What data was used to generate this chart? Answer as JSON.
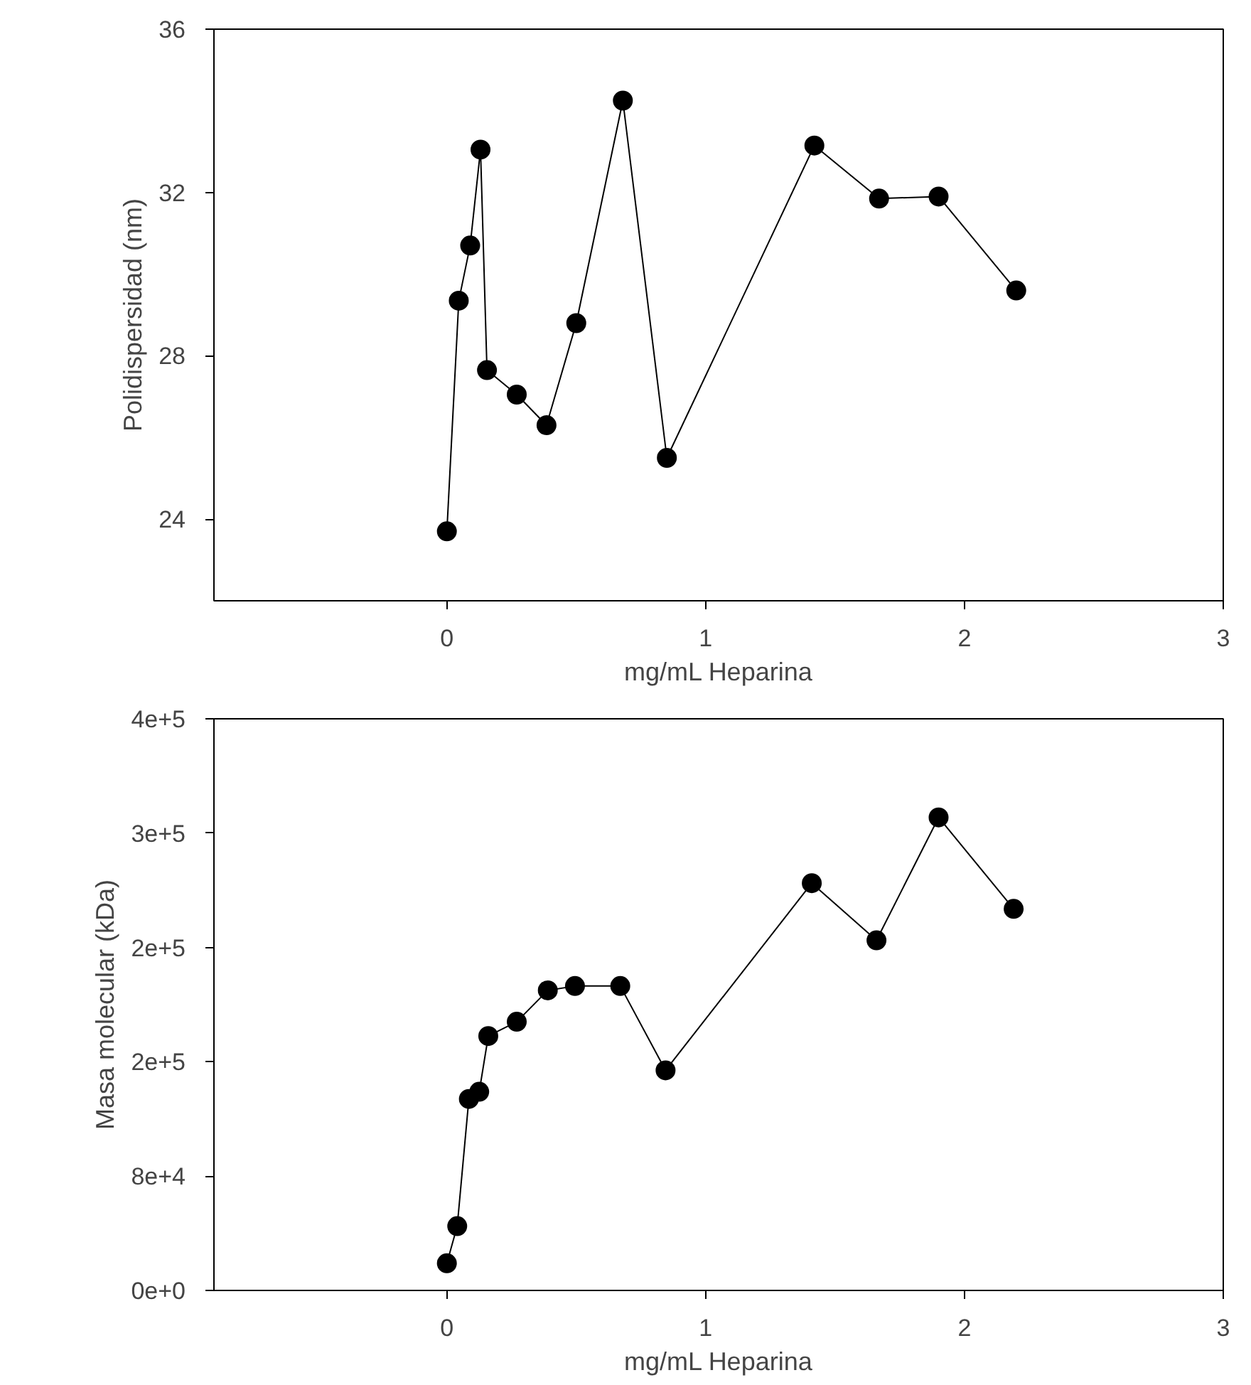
{
  "chart_data": [
    {
      "type": "line",
      "xlabel": "mg/mL Heparina",
      "ylabel": "Polidispersidad (nm)",
      "xlim": [
        -0.9,
        3
      ],
      "ylim": [
        22,
        36
      ],
      "xticks": [
        0,
        1,
        2,
        3
      ],
      "yticks": [
        24,
        28,
        32,
        36
      ],
      "grid": false,
      "marker": "circle",
      "line_style": "solid",
      "x": [
        0,
        0.046,
        0.09,
        0.13,
        0.155,
        0.27,
        0.385,
        0.5,
        0.68,
        0.85,
        1.42,
        1.67,
        1.9,
        2.2
      ],
      "series": [
        {
          "color": "#000000",
          "values": [
            23.7,
            29.35,
            30.7,
            33.05,
            27.65,
            27.05,
            26.3,
            28.8,
            34.25,
            25.5,
            33.15,
            31.85,
            31.9,
            29.6
          ]
        }
      ]
    },
    {
      "type": "line",
      "xlabel": "mg/mL Heparina",
      "ylabel": "Masa molecular (kDa)",
      "xlim": [
        -0.9,
        3
      ],
      "ylim": [
        0,
        400000
      ],
      "xticks": [
        0,
        1,
        2,
        3
      ],
      "yticks": [
        {
          "value": 0,
          "label": "0e+0"
        },
        {
          "value": 80000,
          "label": "8e+4"
        },
        {
          "value": 160000,
          "label": "2e+5"
        },
        {
          "value": 240000,
          "label": "2e+5"
        },
        {
          "value": 320000,
          "label": "3e+5"
        },
        {
          "value": 400000,
          "label": "4e+5"
        }
      ],
      "grid": false,
      "marker": "circle",
      "line_style": "solid",
      "x": [
        0,
        0.04,
        0.085,
        0.125,
        0.16,
        0.27,
        0.39,
        0.495,
        0.67,
        0.845,
        1.41,
        1.66,
        1.9,
        2.19
      ],
      "series": [
        {
          "color": "#000000",
          "values": [
            19000,
            45000,
            134000,
            139000,
            178000,
            188000,
            210000,
            213000,
            213000,
            154000,
            285000,
            245000,
            331000,
            267000
          ]
        }
      ]
    }
  ]
}
